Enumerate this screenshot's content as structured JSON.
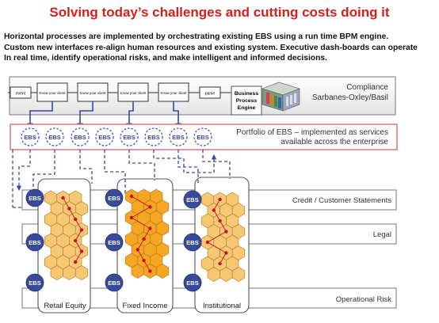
{
  "title": "Solving today’s challenges and cutting costs doing it",
  "intro": [
    "Horizontal processes are implemented by orchestrating existing EBS using a run time BPM engine.",
    "Custom new interfaces re-align human resources and existing system. Executive dash-boards can operate",
    "In real time, identify operational risks, and make intelligent and informed decisions."
  ],
  "process": {
    "start_label": "event",
    "step_label": "Know your client",
    "end_label": "panie",
    "engine": [
      "Business",
      "Process",
      "Engine"
    ]
  },
  "compliance": [
    "Compliance",
    "Sarbanes-Oxley/Basil"
  ],
  "ebs_label": "EBS",
  "portfolio": [
    "Portfolio of EBS – implemented as services",
    "available across the enterprise"
  ],
  "lanes": [
    "Credit / Customer Statements",
    "Legal",
    "Operational Risk"
  ],
  "columns": [
    "Retail Equity",
    "Fixed Income",
    "Institutional"
  ],
  "colors": {
    "title": "#d42020",
    "ebs_circle": "#3a4a9a",
    "hexagon": "#f5a623",
    "hex_dot": "#c8102e",
    "portfolio_border": "#d07070"
  }
}
